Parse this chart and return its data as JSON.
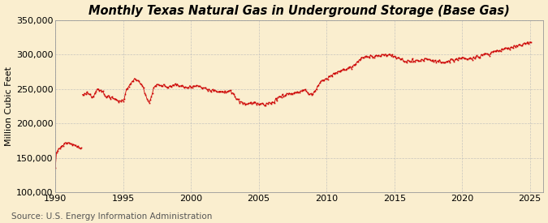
{
  "title": "Monthly Texas Natural Gas in Underground Storage (Base Gas)",
  "ylabel": "Million Cubic Feet",
  "source": "Source: U.S. Energy Information Administration",
  "background_color": "#faeecf",
  "plot_background_color": "#faeecf",
  "line_color": "#cc0000",
  "grid_color": "#bbbbbb",
  "title_fontsize": 10.5,
  "ylabel_fontsize": 8,
  "source_fontsize": 7.5,
  "tick_fontsize": 8,
  "xlim": [
    1990,
    2026
  ],
  "ylim": [
    100000,
    350000
  ],
  "yticks": [
    100000,
    150000,
    200000,
    250000,
    300000,
    350000
  ],
  "xticks": [
    1990,
    1995,
    2000,
    2005,
    2010,
    2015,
    2020,
    2025
  ],
  "waypoints": [
    [
      1990.0,
      134000
    ],
    [
      1990.08,
      158000
    ],
    [
      1990.25,
      163000
    ],
    [
      1990.5,
      168000
    ],
    [
      1990.75,
      172000
    ],
    [
      1991.0,
      172000
    ],
    [
      1991.25,
      170000
    ],
    [
      1991.5,
      168000
    ],
    [
      1991.75,
      165000
    ],
    [
      1991.92,
      163000
    ],
    [
      1992.0,
      242000
    ],
    [
      1992.25,
      245000
    ],
    [
      1992.5,
      243000
    ],
    [
      1992.75,
      238000
    ],
    [
      1993.0,
      248000
    ],
    [
      1993.25,
      248000
    ],
    [
      1993.5,
      246000
    ],
    [
      1993.75,
      240000
    ],
    [
      1994.0,
      237000
    ],
    [
      1994.25,
      236000
    ],
    [
      1994.5,
      235000
    ],
    [
      1994.75,
      232000
    ],
    [
      1995.0,
      233000
    ],
    [
      1995.25,
      248000
    ],
    [
      1995.5,
      258000
    ],
    [
      1995.75,
      263000
    ],
    [
      1995.92,
      264000
    ],
    [
      1996.0,
      262000
    ],
    [
      1996.25,
      258000
    ],
    [
      1996.5,
      252000
    ],
    [
      1996.75,
      235000
    ],
    [
      1996.92,
      231000
    ],
    [
      1997.0,
      234000
    ],
    [
      1997.25,
      250000
    ],
    [
      1997.5,
      256000
    ],
    [
      1997.75,
      255000
    ],
    [
      1998.0,
      254000
    ],
    [
      1998.25,
      253000
    ],
    [
      1998.5,
      254000
    ],
    [
      1998.75,
      256000
    ],
    [
      1999.0,
      255000
    ],
    [
      1999.25,
      254000
    ],
    [
      1999.5,
      253000
    ],
    [
      1999.75,
      252000
    ],
    [
      2000.0,
      253000
    ],
    [
      2000.25,
      254000
    ],
    [
      2000.5,
      254000
    ],
    [
      2000.75,
      252000
    ],
    [
      2001.0,
      252000
    ],
    [
      2001.25,
      250000
    ],
    [
      2001.5,
      249000
    ],
    [
      2001.75,
      248000
    ],
    [
      2002.0,
      247000
    ],
    [
      2002.25,
      247000
    ],
    [
      2002.5,
      247000
    ],
    [
      2002.75,
      246000
    ],
    [
      2003.0,
      246000
    ],
    [
      2003.25,
      238000
    ],
    [
      2003.5,
      233000
    ],
    [
      2003.75,
      230000
    ],
    [
      2004.0,
      229000
    ],
    [
      2004.25,
      229000
    ],
    [
      2004.5,
      230000
    ],
    [
      2004.75,
      230000
    ],
    [
      2005.0,
      228000
    ],
    [
      2005.25,
      228000
    ],
    [
      2005.5,
      228000
    ],
    [
      2005.75,
      229000
    ],
    [
      2006.0,
      230000
    ],
    [
      2006.25,
      234000
    ],
    [
      2006.5,
      238000
    ],
    [
      2006.75,
      241000
    ],
    [
      2007.0,
      242000
    ],
    [
      2007.25,
      243000
    ],
    [
      2007.5,
      244000
    ],
    [
      2007.75,
      245000
    ],
    [
      2008.0,
      246000
    ],
    [
      2008.25,
      248000
    ],
    [
      2008.5,
      247000
    ],
    [
      2008.75,
      242000
    ],
    [
      2009.0,
      243000
    ],
    [
      2009.25,
      250000
    ],
    [
      2009.5,
      258000
    ],
    [
      2009.75,
      263000
    ],
    [
      2010.0,
      265000
    ],
    [
      2010.25,
      268000
    ],
    [
      2010.5,
      271000
    ],
    [
      2010.75,
      275000
    ],
    [
      2011.0,
      276000
    ],
    [
      2011.25,
      278000
    ],
    [
      2011.5,
      279000
    ],
    [
      2011.75,
      281000
    ],
    [
      2012.0,
      283000
    ],
    [
      2012.25,
      289000
    ],
    [
      2012.5,
      293000
    ],
    [
      2012.75,
      296000
    ],
    [
      2013.0,
      297000
    ],
    [
      2013.25,
      298000
    ],
    [
      2013.5,
      298000
    ],
    [
      2013.75,
      298000
    ],
    [
      2014.0,
      299000
    ],
    [
      2014.25,
      299000
    ],
    [
      2014.5,
      299000
    ],
    [
      2014.75,
      298000
    ],
    [
      2015.0,
      297000
    ],
    [
      2015.25,
      295000
    ],
    [
      2015.5,
      293000
    ],
    [
      2015.75,
      291000
    ],
    [
      2016.0,
      290000
    ],
    [
      2016.25,
      290000
    ],
    [
      2016.5,
      291000
    ],
    [
      2016.75,
      291000
    ],
    [
      2017.0,
      292000
    ],
    [
      2017.25,
      293000
    ],
    [
      2017.5,
      293000
    ],
    [
      2017.75,
      292000
    ],
    [
      2018.0,
      291000
    ],
    [
      2018.25,
      290000
    ],
    [
      2018.5,
      290000
    ],
    [
      2018.75,
      289000
    ],
    [
      2019.0,
      289000
    ],
    [
      2019.25,
      291000
    ],
    [
      2019.5,
      293000
    ],
    [
      2019.75,
      295000
    ],
    [
      2020.0,
      295000
    ],
    [
      2020.25,
      294000
    ],
    [
      2020.5,
      294000
    ],
    [
      2020.75,
      295000
    ],
    [
      2021.0,
      296000
    ],
    [
      2021.25,
      297000
    ],
    [
      2021.5,
      299000
    ],
    [
      2021.75,
      301000
    ],
    [
      2022.0,
      302000
    ],
    [
      2022.25,
      304000
    ],
    [
      2022.5,
      305000
    ],
    [
      2022.75,
      306000
    ],
    [
      2023.0,
      307000
    ],
    [
      2023.25,
      308000
    ],
    [
      2023.5,
      309000
    ],
    [
      2023.75,
      311000
    ],
    [
      2024.0,
      312000
    ],
    [
      2024.25,
      313000
    ],
    [
      2024.5,
      315000
    ],
    [
      2024.75,
      317000
    ],
    [
      2025.0,
      319000
    ]
  ]
}
